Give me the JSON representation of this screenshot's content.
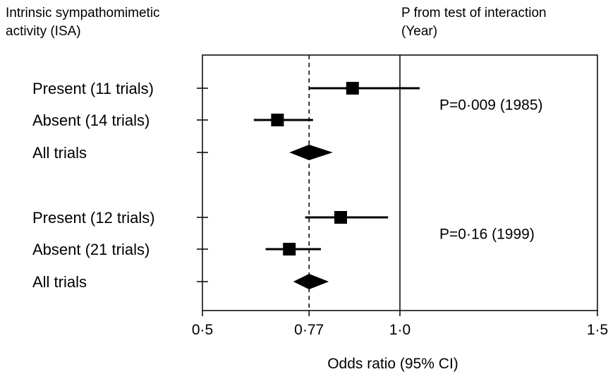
{
  "header": {
    "left": "Intrinsic sympathomimetic\nactivity (ISA)",
    "right": "P from test of interaction\n(Year)"
  },
  "chart_data": {
    "type": "forest",
    "xlabel": "Odds ratio (95% CI)",
    "xlim": [
      0.5,
      1.5
    ],
    "x_ticks": [
      0.5,
      0.77,
      1.0,
      1.5
    ],
    "x_tick_labels": [
      "0·5",
      "0·77",
      "1·0",
      "1·5"
    ],
    "reference_lines": {
      "null": 1.0,
      "pooled_dashed": 0.77
    },
    "groups": [
      {
        "p_label": "P=0·009 (1985)",
        "rows": [
          {
            "label": "Present (11 trials)",
            "kind": "study",
            "estimate": 0.88,
            "ci": [
              0.77,
              1.05
            ]
          },
          {
            "label": "Absent (14 trials)",
            "kind": "study",
            "estimate": 0.69,
            "ci": [
              0.63,
              0.78
            ]
          },
          {
            "label": "All trials",
            "kind": "pooled",
            "estimate": 0.77,
            "ci": [
              0.72,
              0.83
            ]
          }
        ]
      },
      {
        "p_label": "P=0·16 (1999)",
        "rows": [
          {
            "label": "Present (12 trials)",
            "kind": "study",
            "estimate": 0.85,
            "ci": [
              0.76,
              0.97
            ]
          },
          {
            "label": "Absent (21 trials)",
            "kind": "study",
            "estimate": 0.72,
            "ci": [
              0.66,
              0.8
            ]
          },
          {
            "label": "All trials",
            "kind": "pooled",
            "estimate": 0.77,
            "ci": [
              0.73,
              0.82
            ]
          }
        ]
      }
    ]
  }
}
